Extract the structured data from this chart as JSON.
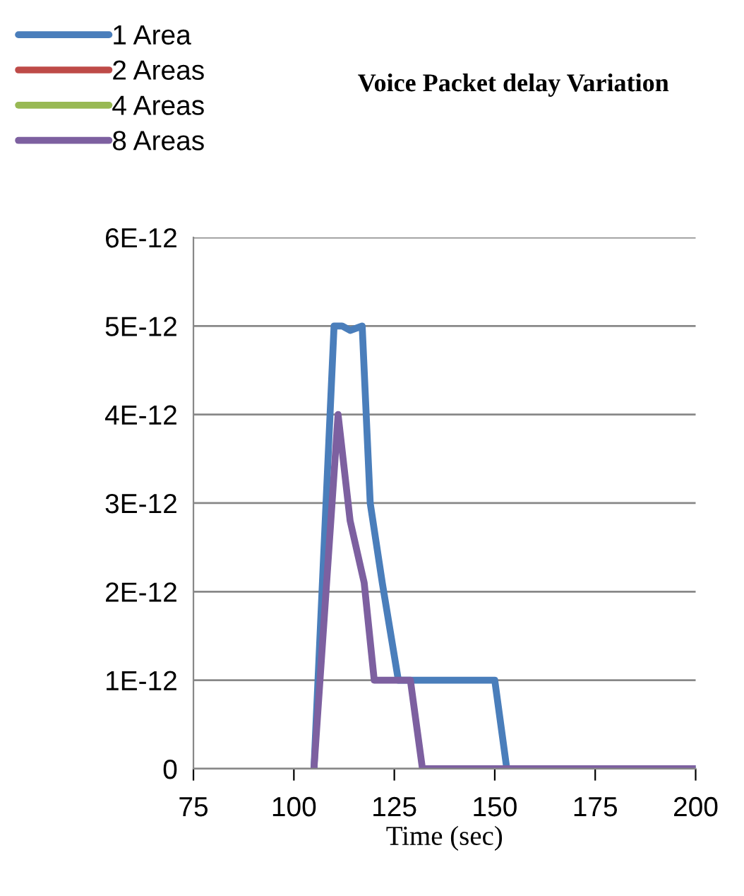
{
  "chart_data": {
    "type": "line",
    "title": "Voice Packet delay Variation",
    "xlabel": "Time (sec)",
    "xlim": [
      75,
      200
    ],
    "xticks": [
      75,
      100,
      125,
      150,
      175,
      200
    ],
    "ylim": [
      0,
      6e-12
    ],
    "yticks": [
      {
        "value": 0,
        "label": "0"
      },
      {
        "value": 1e-12,
        "label": "1E-12"
      },
      {
        "value": 2e-12,
        "label": "2E-12"
      },
      {
        "value": 3e-12,
        "label": "3E-12"
      },
      {
        "value": 4e-12,
        "label": "4E-12"
      },
      {
        "value": 5e-12,
        "label": "5E-12"
      },
      {
        "value": 6e-12,
        "label": "6E-12"
      }
    ],
    "grid": "y",
    "legend": "top left",
    "marker": "none",
    "line_style": "solid",
    "series": [
      {
        "name": "1 Area",
        "color": "#4a7ebb",
        "x": [
          105,
          110,
          112,
          114,
          117,
          119,
          122,
          126,
          140,
          149,
          150,
          153,
          200
        ],
        "values": [
          0,
          5e-12,
          5e-12,
          4.95e-12,
          5e-12,
          3e-12,
          2.1e-12,
          1e-12,
          1e-12,
          1e-12,
          1e-12,
          0,
          0
        ]
      },
      {
        "name": "2 Areas",
        "color": "#be4b48"
      },
      {
        "name": "4 Areas",
        "color": "#98b954"
      },
      {
        "name": "8 Areas",
        "color": "#7d60a0",
        "x": [
          105,
          111,
          114,
          117.5,
          120,
          122,
          126,
          129,
          132,
          200
        ],
        "values": [
          0,
          4e-12,
          2.8e-12,
          2.1e-12,
          1e-12,
          1e-12,
          1e-12,
          1e-12,
          0,
          0
        ]
      }
    ]
  }
}
